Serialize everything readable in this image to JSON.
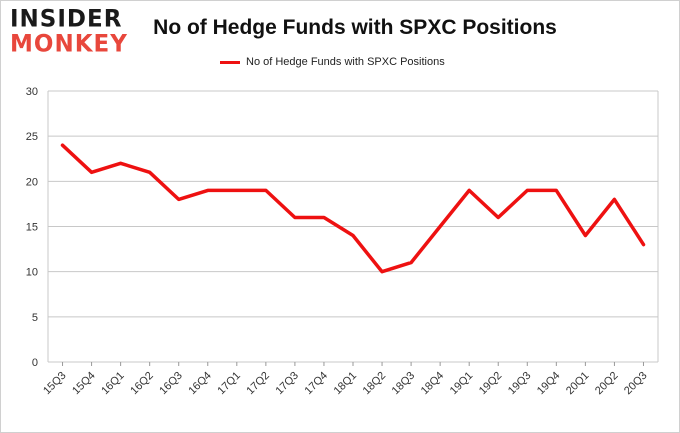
{
  "logo": {
    "line1": "INSIDER",
    "line2": "MONKEY"
  },
  "colors": {
    "series": "#ee1111",
    "grid": "#c8c8c8",
    "logo_accent": "#e8473c"
  },
  "chart_data": {
    "type": "line",
    "title": "No of Hedge Funds with SPXC Positions",
    "xlabel": "",
    "ylabel": "",
    "legend_position": "top-center",
    "grid": true,
    "ylim": [
      0,
      30
    ],
    "yticks": [
      0,
      5,
      10,
      15,
      20,
      25,
      30
    ],
    "categories": [
      "15Q3",
      "15Q4",
      "16Q1",
      "16Q2",
      "16Q3",
      "16Q4",
      "17Q1",
      "17Q2",
      "17Q3",
      "17Q4",
      "18Q1",
      "18Q2",
      "18Q3",
      "18Q4",
      "19Q1",
      "19Q2",
      "19Q3",
      "19Q4",
      "20Q1",
      "20Q2",
      "20Q3"
    ],
    "series": [
      {
        "name": "No of Hedge Funds with SPXC Positions",
        "values": [
          24,
          21,
          22,
          21,
          18,
          19,
          19,
          19,
          16,
          16,
          14,
          10,
          11,
          15,
          19,
          16,
          19,
          19,
          14,
          18,
          13
        ]
      }
    ]
  }
}
